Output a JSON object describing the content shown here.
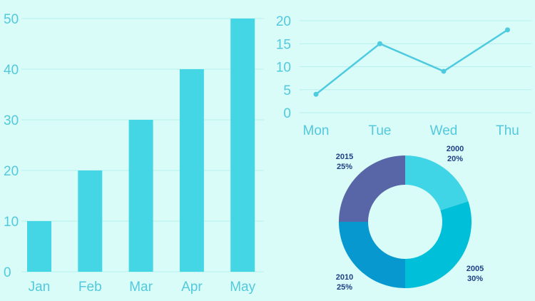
{
  "colors": {
    "background": "#d9fcf8",
    "bar": "#45d6e6",
    "line": "#4fcbe0",
    "grid": "#b7f0ec",
    "tick_text": "#52c9dc",
    "pie_label_text": "#1f3f86"
  },
  "chart_data": [
    {
      "type": "bar",
      "title": "",
      "xlabel": "",
      "ylabel": "",
      "categories": [
        "Jan",
        "Feb",
        "Mar",
        "Apr",
        "May"
      ],
      "values": [
        10,
        20,
        30,
        40,
        50
      ],
      "ylim": [
        0,
        50
      ],
      "yticks": [
        "0",
        "10",
        "20",
        "30",
        "40",
        "50"
      ],
      "grid": true,
      "legend": "none"
    },
    {
      "type": "line",
      "title": "",
      "xlabel": "",
      "ylabel": "",
      "categories": [
        "Mon",
        "Tue",
        "Wed",
        "Thu"
      ],
      "values": [
        4,
        15,
        9,
        18
      ],
      "ylim": [
        0,
        20
      ],
      "yticks": [
        "0",
        "5",
        "10",
        "15",
        "20"
      ],
      "grid": true,
      "legend": "none"
    },
    {
      "type": "pie",
      "title": "",
      "donut": true,
      "slices": [
        {
          "label": "2000",
          "percent_label": "20%",
          "value": 20,
          "color": "#3fd4e6"
        },
        {
          "label": "2005",
          "percent_label": "30%",
          "value": 30,
          "color": "#00c0d9"
        },
        {
          "label": "2010",
          "percent_label": "25%",
          "value": 25,
          "color": "#0798cf"
        },
        {
          "label": "2015",
          "percent_label": "25%",
          "value": 25,
          "color": "#5866a8"
        }
      ]
    }
  ]
}
